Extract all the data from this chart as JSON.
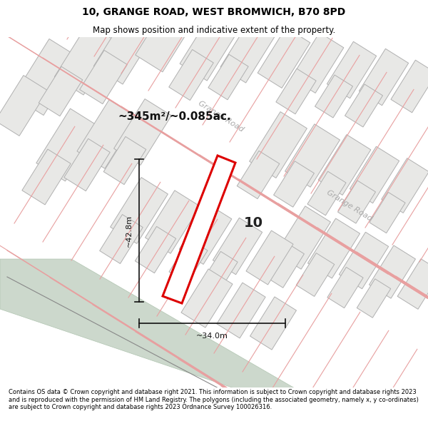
{
  "title_line1": "10, GRANGE ROAD, WEST BROMWICH, B70 8PD",
  "title_line2": "Map shows position and indicative extent of the property.",
  "footer_text": "Contains OS data © Crown copyright and database right 2021. This information is subject to Crown copyright and database rights 2023 and is reproduced with the permission of HM Land Registry. The polygons (including the associated geometry, namely x, y co-ordinates) are subject to Crown copyright and database rights 2023 Ordnance Survey 100026316.",
  "area_label": "~345m²/~0.085ac.",
  "number_label": "10",
  "dim_width": "~34.0m",
  "dim_height": "~42.8m",
  "road_label1": "Grange Road",
  "road_label2": "Grange Road",
  "map_bg": "#ffffff",
  "plot_outline_color": "#dd0000",
  "building_fill": "#e8e8e6",
  "building_outline": "#b0b0b0",
  "parcel_line_color": "#e8a0a0",
  "green_area_color": "#ccd8cc",
  "green_edge_color": "#b0c4b0",
  "footer_bg": "#ffffff",
  "header_bg": "#ffffff",
  "road_text_color": "#aaaaaa",
  "dim_line_color": "#111111",
  "area_label_color": "#111111",
  "number_color": "#222222"
}
